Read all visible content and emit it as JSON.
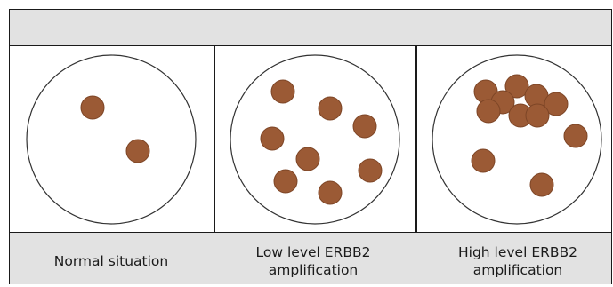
{
  "header": {
    "text": ""
  },
  "colors": {
    "dot_fill": "#9b5a35",
    "dot_stroke": "#7d4526",
    "circle_stroke": "#333333",
    "band": "#e2e2e2"
  },
  "panels": [
    {
      "caption": "Normal situation"
    },
    {
      "caption": "Low level ERBB2 amplification"
    },
    {
      "caption": "High level ERBB2 amplification"
    }
  ]
}
